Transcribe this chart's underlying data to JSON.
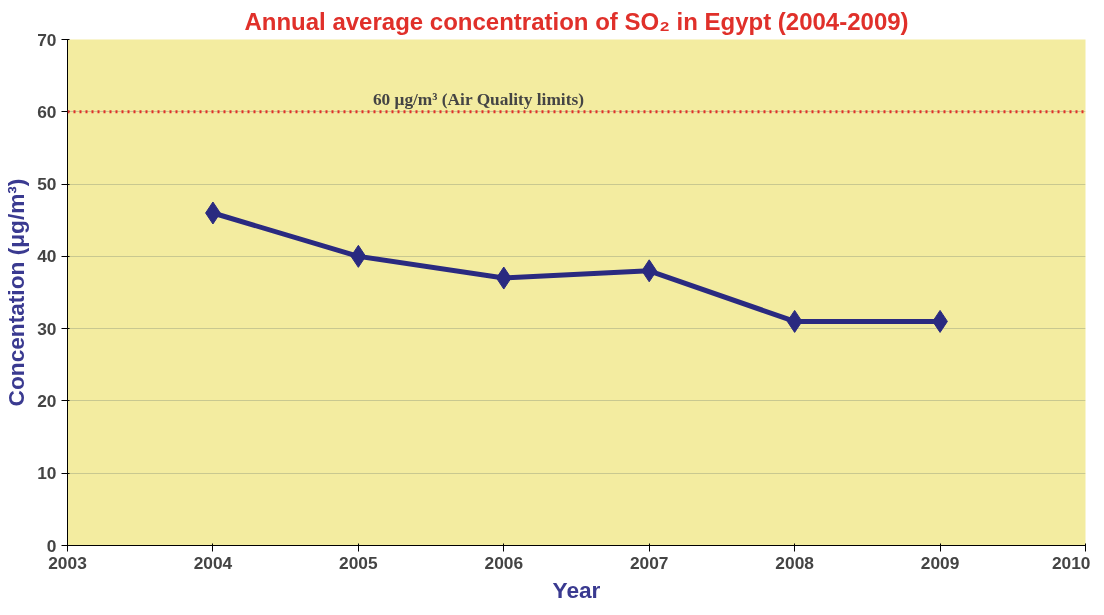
{
  "chart_data": {
    "type": "line",
    "title": "Annual average concentration of SO₂ in Egypt (2004-2009)",
    "xlabel": "Year",
    "ylabel": "Concentation (μg/m³)",
    "x": [
      2004,
      2005,
      2006,
      2007,
      2008,
      2009
    ],
    "series": [
      {
        "color": "#2a2a80",
        "values": [
          46,
          40,
          37,
          38,
          31,
          31
        ]
      }
    ],
    "xlim": [
      2003,
      2010
    ],
    "xticks": [
      2003,
      2004,
      2005,
      2006,
      2007,
      2008,
      2009,
      2010
    ],
    "ylim": [
      0,
      70
    ],
    "yticks": [
      0,
      10,
      20,
      30,
      40,
      50,
      60,
      70
    ],
    "ref_lines": [
      {
        "axis": "y",
        "value": 60,
        "label": "60 μg/m³ (Air Quality limits)",
        "color": "#e0302a",
        "line_style": "dotted"
      }
    ],
    "grid": "y",
    "marker": "diamond",
    "line_style": "solid"
  }
}
